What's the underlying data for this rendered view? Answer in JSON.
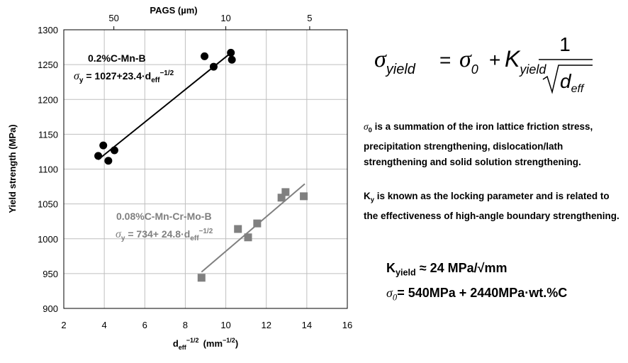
{
  "chart_data": {
    "type": "scatter",
    "xlabel": "d",
    "xlabel_sub": "eff",
    "xlabel_sup": "−1/2",
    "xlabel_unit_pre": "(mm",
    "xlabel_unit_sup": "−1/2",
    "xlabel_unit_post": ")",
    "ylabel": "Yield strength (MPa)",
    "top_axis_label": "PAGS (µm)",
    "xlim": [
      2,
      16
    ],
    "ylim": [
      900,
      1300
    ],
    "xticks": [
      "2",
      "4",
      "6",
      "8",
      "10",
      "12",
      "14",
      "16"
    ],
    "yticks": [
      "900",
      "950",
      "1000",
      "1050",
      "1100",
      "1150",
      "1200",
      "1250",
      "1300"
    ],
    "top_ticks": [
      {
        "label": "50",
        "pags_um": 50
      },
      {
        "label": "10",
        "pags_um": 10
      },
      {
        "label": "5",
        "pags_um": 5
      }
    ],
    "grid": true,
    "series": [
      {
        "name": "0.2%C-Mn-B",
        "marker": "circle",
        "color": "#000000",
        "points": [
          [
            3.7,
            1119
          ],
          [
            3.95,
            1134
          ],
          [
            4.2,
            1112
          ],
          [
            4.5,
            1127
          ],
          [
            8.95,
            1262
          ],
          [
            9.4,
            1247
          ],
          [
            10.25,
            1267
          ],
          [
            10.3,
            1257
          ]
        ],
        "fit": {
          "intercept": 1027,
          "slope": 23.4,
          "x_range": [
            3.7,
            10.3
          ]
        },
        "label_line1": "0.2%C-Mn-B",
        "eq_sigma": "σ",
        "eq_sub": "y",
        "eq_body": " = 1027+23.4·d",
        "eq_body_sub": "eff",
        "eq_body_sup": "−1/2"
      },
      {
        "name": "0.08%C-Mn-Cr-Mo-B",
        "marker": "square",
        "color": "#808080",
        "points": [
          [
            8.8,
            944
          ],
          [
            10.6,
            1014
          ],
          [
            11.1,
            1002
          ],
          [
            11.55,
            1022
          ],
          [
            12.75,
            1059
          ],
          [
            12.95,
            1067
          ],
          [
            13.85,
            1061
          ]
        ],
        "fit": {
          "intercept": 734,
          "slope": 24.8,
          "x_range": [
            8.8,
            13.9
          ]
        },
        "label_line1": "0.08%C-Mn-Cr-Mo-B",
        "eq_sigma": "σ",
        "eq_sub": "y",
        "eq_body": " = 734+ 24.8·d",
        "eq_body_sub": "eff",
        "eq_body_sup": "−1/2"
      }
    ]
  },
  "formula": {
    "sigma": "σ",
    "sub_yield": "yield",
    "equals": "=",
    "sigma0": "σ",
    "sub0": "0",
    "plus": "+",
    "K": "K",
    "numerator": "1",
    "d": "d",
    "sub_eff": "eff"
  },
  "notes": {
    "sigma0_symbol": "σ",
    "sigma0_sub": "0",
    "sigma0_text": " is a summation of the iron lattice friction stress, precipitation strengthening, dislocation/lath strengthening and solid solution strengthening.",
    "ky_symbol": "K",
    "ky_sub": "y",
    "ky_text": " is known as the locking parameter and is related to the effectiveness of high-angle boundary strengthening."
  },
  "kyield": {
    "K": "K",
    "sub": "yield",
    "text": " ≈ 24 MPa/√mm"
  },
  "sigma0_eq": {
    "sigma": "σ",
    "sub": "0",
    "text": "= 540MPa + 2440MPa·wt.%C"
  }
}
